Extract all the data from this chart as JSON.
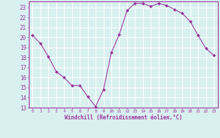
{
  "x": [
    0,
    1,
    2,
    3,
    4,
    5,
    6,
    7,
    8,
    9,
    10,
    11,
    12,
    13,
    14,
    15,
    16,
    17,
    18,
    19,
    20,
    21,
    22,
    23
  ],
  "y": [
    20.2,
    19.4,
    18.1,
    16.6,
    16.0,
    15.2,
    15.2,
    14.1,
    13.1,
    14.8,
    18.5,
    20.3,
    22.7,
    23.4,
    23.4,
    23.1,
    23.4,
    23.2,
    22.8,
    22.4,
    21.6,
    20.2,
    18.9,
    18.2
  ],
  "line_color": "#993399",
  "marker": "D",
  "marker_size": 2.0,
  "bg_color": "#d8f0f0",
  "grid_color": "#ffffff",
  "xlabel": "Windchill (Refroidissement éolien,°C)",
  "xlabel_color": "#993399",
  "tick_color": "#993399",
  "ylim": [
    13,
    23.6
  ],
  "xlim": [
    -0.5,
    23.5
  ],
  "yticks": [
    13,
    14,
    15,
    16,
    17,
    18,
    19,
    20,
    21,
    22,
    23
  ],
  "xticks": [
    0,
    1,
    2,
    3,
    4,
    5,
    6,
    7,
    8,
    9,
    10,
    11,
    12,
    13,
    14,
    15,
    16,
    17,
    18,
    19,
    20,
    21,
    22,
    23
  ]
}
